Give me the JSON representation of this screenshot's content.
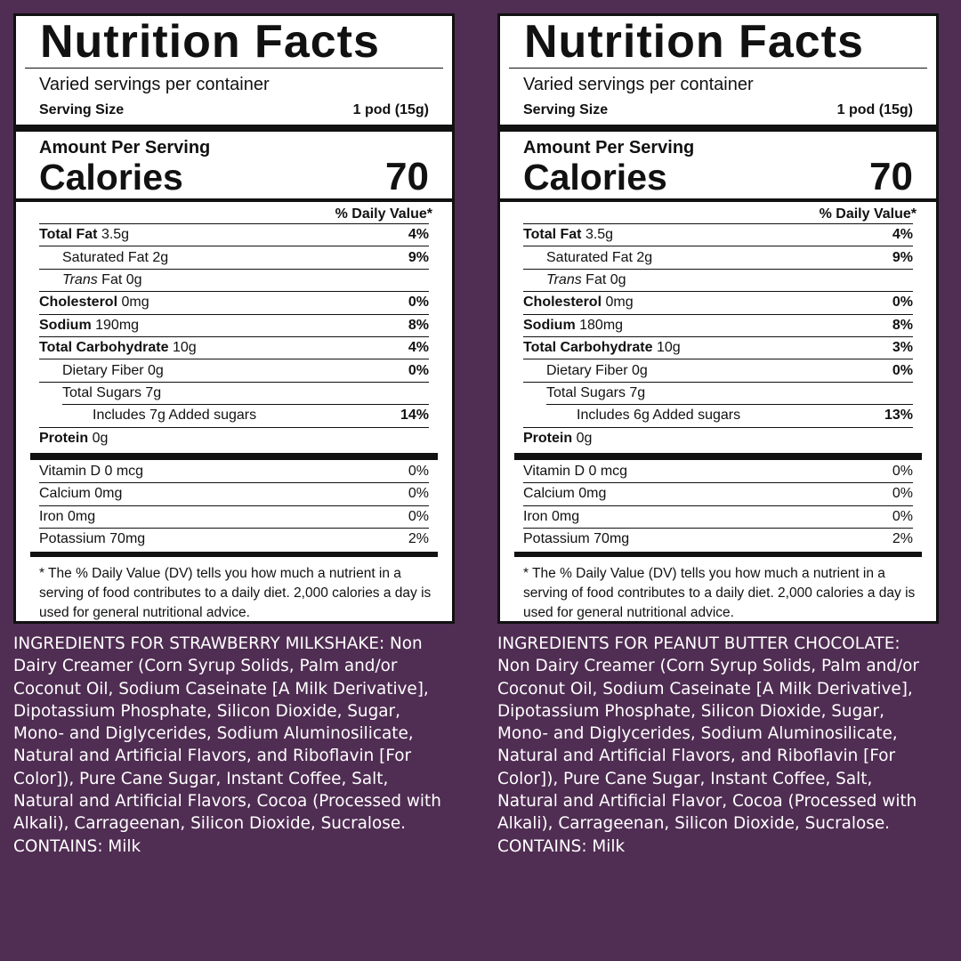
{
  "labels": [
    {
      "title": "Nutrition Facts",
      "servings_per_container": "Varied servings per container",
      "serving_size_label": "Serving Size",
      "serving_size_value": "1 pod (15g)",
      "amount_per_serving": "Amount Per Serving",
      "calories_label": "Calories",
      "calories_value": "70",
      "dv_header": "% Daily Value*",
      "total_fat": {
        "name": "Total Fat",
        "amount": "3.5g",
        "dv": "4%"
      },
      "saturated_fat": {
        "name": "Saturated Fat 2g",
        "dv": "9%"
      },
      "trans_fat": {
        "name": "Trans",
        "amount": "Fat 0g"
      },
      "cholesterol": {
        "name": "Cholesterol",
        "amount": "0mg",
        "dv": "0%"
      },
      "sodium": {
        "name": "Sodium",
        "amount": "190mg",
        "dv": "8%"
      },
      "total_carb": {
        "name": "Total Carbohydrate",
        "amount": "10g",
        "dv": "4%"
      },
      "dietary_fiber": {
        "name": "Dietary Fiber 0g",
        "dv": "0%"
      },
      "total_sugars": {
        "name": "Total Sugars 7g"
      },
      "added_sugars": {
        "name": "Includes 7g Added sugars",
        "dv": "14%"
      },
      "protein": {
        "name": "Protein",
        "amount": "0g"
      },
      "vitamins": [
        {
          "name": "Vitamin D 0 mcg",
          "dv": "0%"
        },
        {
          "name": "Calcium 0mg",
          "dv": "0%"
        },
        {
          "name": "Iron 0mg",
          "dv": "0%"
        },
        {
          "name": "Potassium 70mg",
          "dv": "2%"
        }
      ],
      "footnote": "* The % Daily Value (DV) tells you how much a nutrient in a serving of food contributes to a daily diet. 2,000 calories a day is used for general nutritional advice.",
      "ingredients": "INGREDIENTS FOR STRAWBERRY MILKSHAKE: Non Dairy Creamer (Corn Syrup Solids, Palm and/or Coconut Oil, Sodium Caseinate [A Milk Derivative], Dipotassium Phosphate, Silicon Dioxide, Sugar, Mono- and Diglycerides, Sodium Aluminosilicate, Natural and Artificial Flavors, and Riboflavin [For Color]), Pure Cane Sugar, Instant Coffee, Salt, Natural and Artificial Flavors, Cocoa (Processed with Alkali), Carrageenan, Silicon Dioxide, Sucralose. CONTAINS: Milk"
    },
    {
      "title": "Nutrition Facts",
      "servings_per_container": "Varied servings per container",
      "serving_size_label": "Serving Size",
      "serving_size_value": "1 pod (15g)",
      "amount_per_serving": "Amount Per Serving",
      "calories_label": "Calories",
      "calories_value": "70",
      "dv_header": "% Daily Value*",
      "total_fat": {
        "name": "Total Fat",
        "amount": "3.5g",
        "dv": "4%"
      },
      "saturated_fat": {
        "name": "Saturated Fat 2g",
        "dv": "9%"
      },
      "trans_fat": {
        "name": "Trans",
        "amount": "Fat 0g"
      },
      "cholesterol": {
        "name": "Cholesterol",
        "amount": "0mg",
        "dv": "0%"
      },
      "sodium": {
        "name": "Sodium",
        "amount": "180mg",
        "dv": "8%"
      },
      "total_carb": {
        "name": "Total Carbohydrate",
        "amount": "10g",
        "dv": "3%"
      },
      "dietary_fiber": {
        "name": "Dietary Fiber 0g",
        "dv": "0%"
      },
      "total_sugars": {
        "name": "Total Sugars 7g"
      },
      "added_sugars": {
        "name": "Includes 6g Added sugars",
        "dv": "13%"
      },
      "protein": {
        "name": "Protein",
        "amount": "0g"
      },
      "vitamins": [
        {
          "name": "Vitamin D 0 mcg",
          "dv": "0%"
        },
        {
          "name": "Calcium 0mg",
          "dv": "0%"
        },
        {
          "name": "Iron 0mg",
          "dv": "0%"
        },
        {
          "name": "Potassium 70mg",
          "dv": "2%"
        }
      ],
      "footnote": "* The % Daily Value (DV) tells you how much a nutrient in a serving of food contributes to a daily diet. 2,000 calories a day is used for general nutritional advice.",
      "ingredients": "INGREDIENTS FOR PEANUT BUTTER CHOCOLATE: Non Dairy Creamer (Corn Syrup Solids, Palm and/or Coconut Oil, Sodium Caseinate [A Milk Derivative], Dipotassium Phosphate, Silicon Dioxide, Sugar, Mono- and Diglycerides, Sodium Aluminosilicate, Natural and Artificial Flavors, and Riboflavin [For Color]), Pure Cane Sugar, Instant Coffee, Salt, Natural and Artificial Flavor, Cocoa (Processed with Alkali), Carrageenan, Silicon Dioxide, Sucralose. CONTAINS: Milk"
    }
  ],
  "colors": {
    "background": "#502d53",
    "label_bg": "#ffffff",
    "text": "#111111",
    "ingredients_text": "#ffffff"
  }
}
